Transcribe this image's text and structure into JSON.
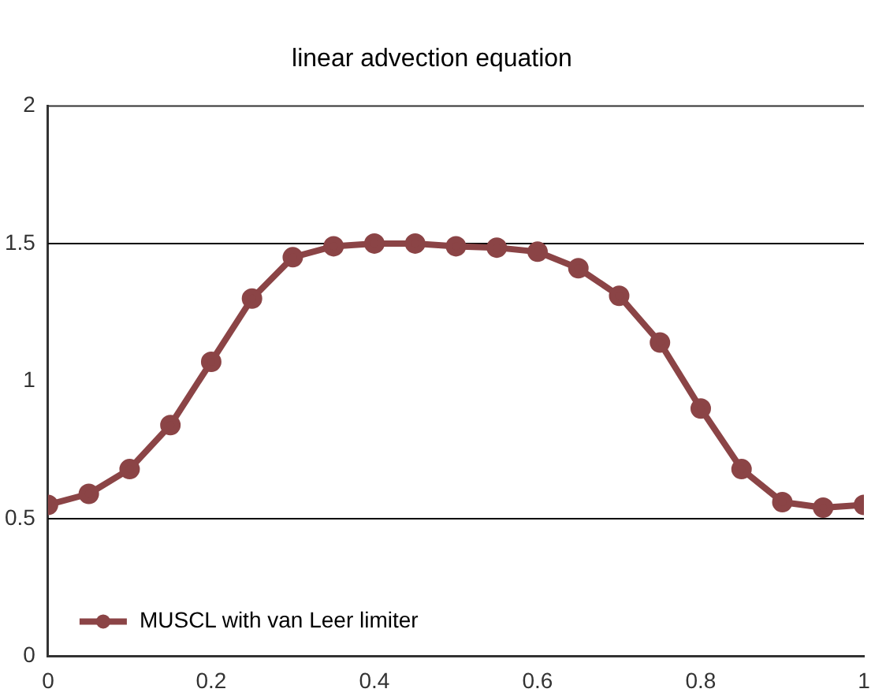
{
  "chart_data": {
    "type": "line",
    "title": "linear advection equation",
    "x": [
      0,
      0.05,
      0.1,
      0.15,
      0.2,
      0.25,
      0.3,
      0.35,
      0.4,
      0.45,
      0.5,
      0.55,
      0.6,
      0.65,
      0.7,
      0.75,
      0.8,
      0.85,
      0.9,
      0.95,
      1
    ],
    "series": [
      {
        "name": "MUSCL with van Leer limiter",
        "color": "#8b4446",
        "values": [
          0.55,
          0.59,
          0.68,
          0.84,
          1.07,
          1.3,
          1.45,
          1.49,
          1.5,
          1.5,
          1.49,
          1.485,
          1.47,
          1.41,
          1.31,
          1.14,
          0.9,
          0.68,
          0.56,
          0.54,
          0.55
        ]
      }
    ],
    "xlim": [
      0,
      1
    ],
    "xticks": [
      0,
      0.2,
      0.4,
      0.6,
      0.8,
      1
    ],
    "ylim": [
      0,
      2
    ],
    "yticks": [
      0,
      0.5,
      1,
      1.5,
      2
    ],
    "ref_lines": [
      {
        "axis": "y",
        "value": 0.5,
        "color": "#000000"
      },
      {
        "axis": "y",
        "value": 1.5,
        "color": "#000000"
      }
    ],
    "grid": false,
    "legend": "bottom left",
    "marker": "circle",
    "line_style": "solid"
  }
}
